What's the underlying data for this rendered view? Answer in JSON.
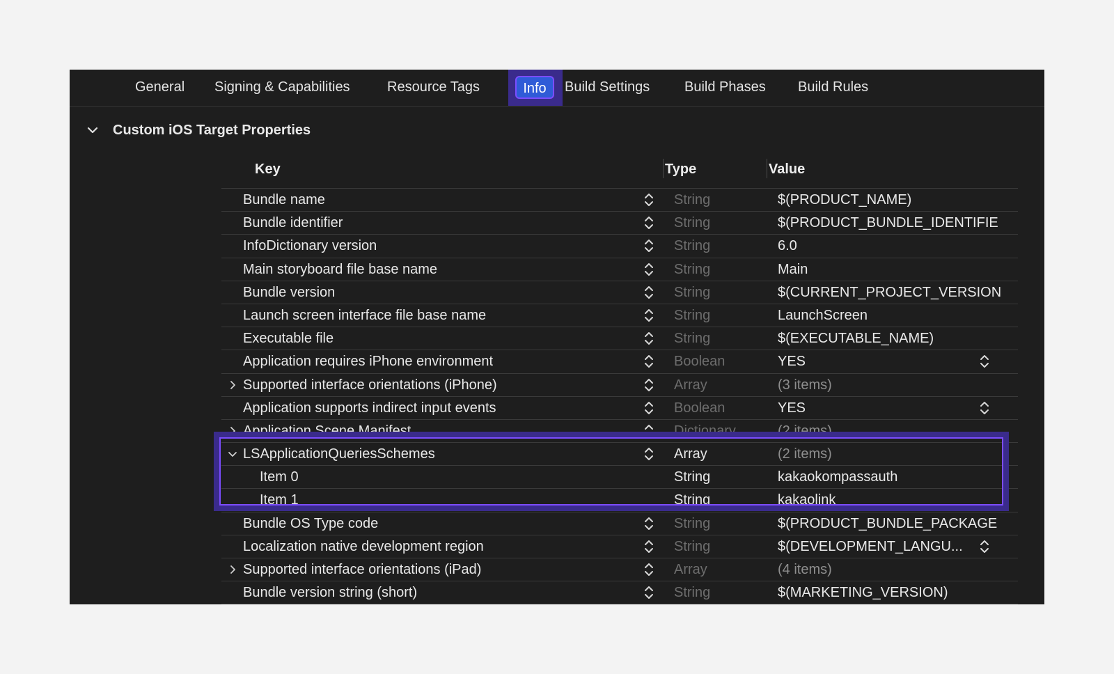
{
  "tabs": [
    {
      "label": "General"
    },
    {
      "label": "Signing & Capabilities"
    },
    {
      "label": "Resource Tags"
    },
    {
      "label": "Info"
    },
    {
      "label": "Build Settings"
    },
    {
      "label": "Build Phases"
    },
    {
      "label": "Build Rules"
    }
  ],
  "section": {
    "title": "Custom iOS Target Properties"
  },
  "table": {
    "headers": {
      "key": "Key",
      "type": "Type",
      "value": "Value"
    },
    "rows": [
      {
        "key": "Bundle name",
        "type": "String",
        "value": "$(PRODUCT_NAME)"
      },
      {
        "key": "Bundle identifier",
        "type": "String",
        "value": "$(PRODUCT_BUNDLE_IDENTIFIE"
      },
      {
        "key": "InfoDictionary version",
        "type": "String",
        "value": "6.0"
      },
      {
        "key": "Main storyboard file base name",
        "type": "String",
        "value": "Main"
      },
      {
        "key": "Bundle version",
        "type": "String",
        "value": "$(CURRENT_PROJECT_VERSION"
      },
      {
        "key": "Launch screen interface file base name",
        "type": "String",
        "value": "LaunchScreen"
      },
      {
        "key": "Executable file",
        "type": "String",
        "value": "$(EXECUTABLE_NAME)"
      },
      {
        "key": "Application requires iPhone environment",
        "type": "Boolean",
        "value": "YES"
      },
      {
        "key": "Supported interface orientations (iPhone)",
        "type": "Array",
        "value": "(3 items)"
      },
      {
        "key": "Application supports indirect input events",
        "type": "Boolean",
        "value": "YES"
      },
      {
        "key": "Application Scene Manifest",
        "type": "Dictionary",
        "value": "(2 items)"
      },
      {
        "key": "LSApplicationQueriesSchemes",
        "type": "Array",
        "value": "(2 items)"
      },
      {
        "key": "Item 0",
        "type": "String",
        "value": "kakaokompassauth"
      },
      {
        "key": "Item 1",
        "type": "String",
        "value": "kakaolink"
      },
      {
        "key": "Bundle OS Type code",
        "type": "String",
        "value": "$(PRODUCT_BUNDLE_PACKAGE"
      },
      {
        "key": "Localization native development region",
        "type": "String",
        "value": "$(DEVELOPMENT_LANGU..."
      },
      {
        "key": "Supported interface orientations (iPad)",
        "type": "Array",
        "value": "(4 items)"
      },
      {
        "key": "Bundle version string (short)",
        "type": "String",
        "value": "$(MARKETING_VERSION)"
      }
    ]
  },
  "icons": {
    "section": "chevron-down-icon",
    "collapsed": "chevron-right-icon",
    "expanded": "chevron-down-icon",
    "stepper": "up-down-stepper-icon"
  },
  "colors": {
    "background": "#1e1e1e",
    "active_tab": "#2f5bd7",
    "highlight": "#7c4dff",
    "dim_text": "#6d6d6d"
  }
}
